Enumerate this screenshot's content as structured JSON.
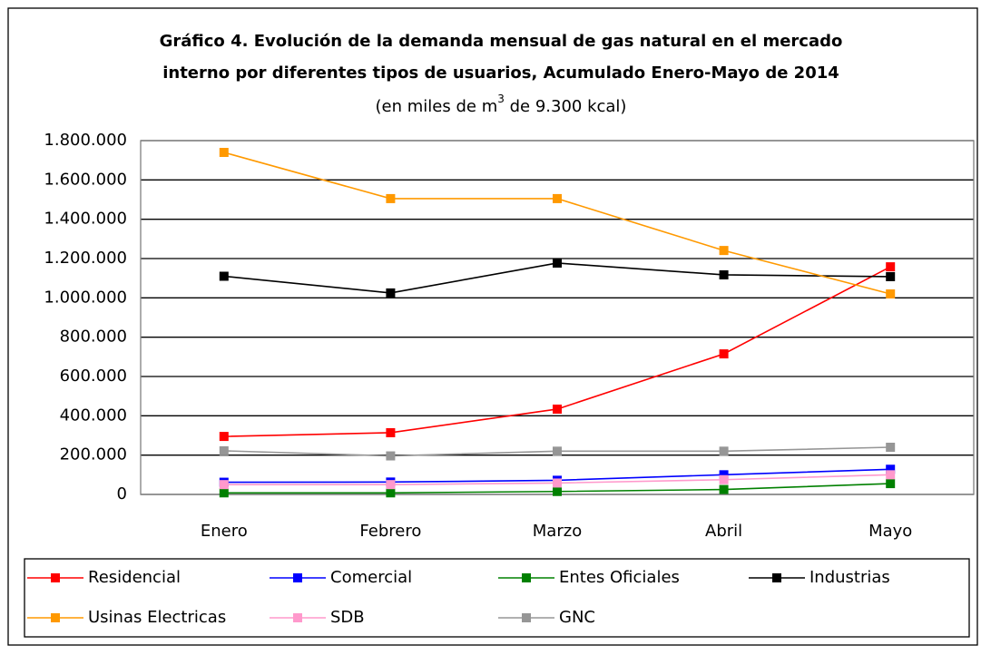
{
  "chart_data": {
    "type": "line",
    "title": [
      "Gráfico 4. Evolución de la demanda mensual de gas natural en el mercado",
      "interno  por diferentes tipos de usuarios, Acumulado Enero-Mayo de 2014"
    ],
    "subtitle": [
      "(en miles de m",
      "3",
      " de 9.300 kcal)"
    ],
    "categories": [
      "Enero",
      "Febrero",
      "Marzo",
      "Abril",
      "Mayo"
    ],
    "series": [
      {
        "name": "Residencial",
        "color": "#ff0000",
        "values": [
          295000,
          314000,
          434000,
          715000,
          1158000
        ]
      },
      {
        "name": "Comercial",
        "color": "#0000ff",
        "values": [
          62000,
          63000,
          72000,
          100000,
          128000
        ]
      },
      {
        "name": "Entes Oficiales",
        "color": "#008000",
        "values": [
          8000,
          8000,
          15000,
          25000,
          55000
        ]
      },
      {
        "name": "Industrias",
        "color": "#000000",
        "values": [
          1110000,
          1025000,
          1177000,
          1117000,
          1108000
        ]
      },
      {
        "name": "Usinas Electricas",
        "color": "#ff9900",
        "values": [
          1740000,
          1505000,
          1505000,
          1241000,
          1020000
        ]
      },
      {
        "name": "SDB",
        "color": "#ff99cc",
        "values": [
          50000,
          50000,
          58000,
          75000,
          100000
        ]
      },
      {
        "name": "GNC",
        "color": "#969696",
        "values": [
          222000,
          196000,
          220000,
          220000,
          240000
        ]
      }
    ],
    "ylim": [
      0,
      1800000
    ],
    "yticks": [
      0,
      {
        "value": 200000,
        "label": "200.000"
      },
      {
        "value": 400000,
        "label": "400.000"
      },
      {
        "value": 600000,
        "label": "600.000"
      },
      {
        "value": 800000,
        "label": "800.000"
      },
      {
        "value": 1000000,
        "label": "1.000.000"
      },
      {
        "value": 1200000,
        "label": "1.200.000"
      },
      {
        "value": 1400000,
        "label": "1.400.000"
      },
      {
        "value": 1600000,
        "label": "1.600.000"
      },
      {
        "value": 1800000,
        "label": "1.800.000"
      }
    ],
    "grid": true,
    "legend": "bottom"
  }
}
